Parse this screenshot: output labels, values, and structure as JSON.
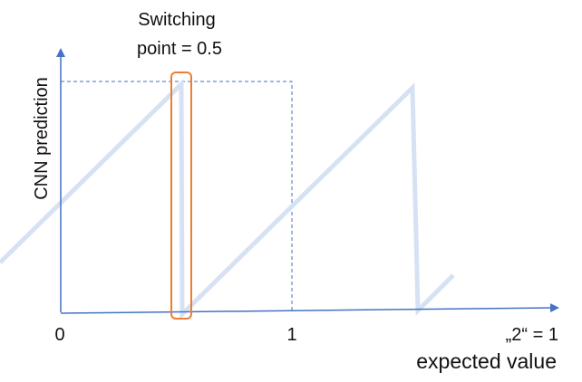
{
  "annotation": {
    "line1": "Switching",
    "line2": "point = 0.5"
  },
  "axes": {
    "ylabel": "CNN prediction",
    "xlabel": "expected value",
    "x_ticks": [
      "0",
      "1"
    ],
    "x_end_label": "„2“ = 1"
  },
  "colors": {
    "axis": "#4472c4",
    "curve": "#d6e2f3",
    "highlight": "#ed7d31",
    "guide": "#4472c4"
  }
}
